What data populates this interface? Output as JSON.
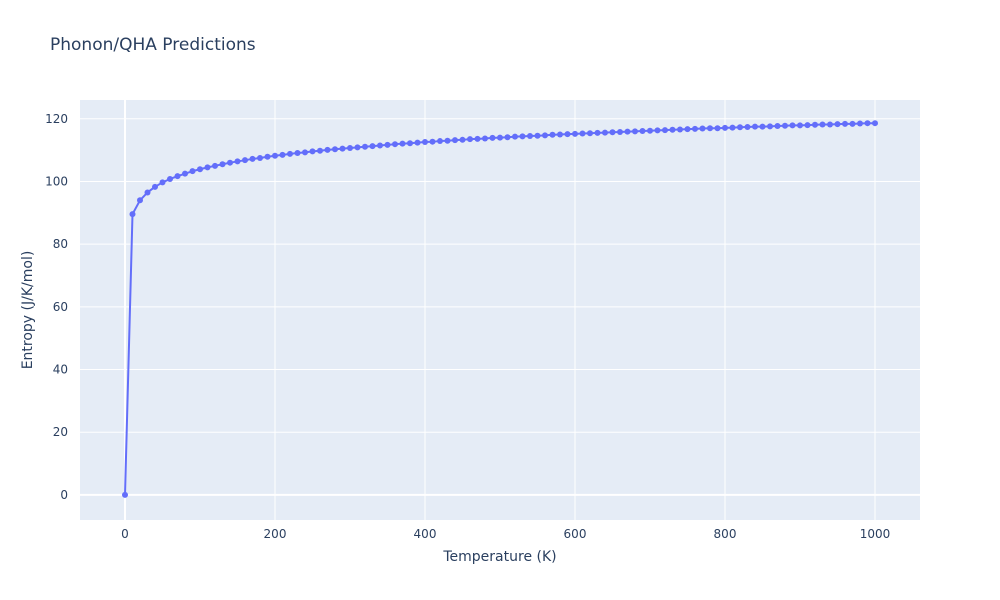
{
  "chart_data": {
    "type": "line",
    "title": "Phonon/QHA Predictions",
    "xlabel": "Temperature (K)",
    "ylabel": "Entropy (J/K/mol)",
    "xlim": [
      -60,
      1060
    ],
    "ylim": [
      -8,
      126
    ],
    "xticks": [
      0,
      200,
      400,
      600,
      800,
      1000
    ],
    "yticks": [
      0,
      20,
      40,
      60,
      80,
      100,
      120
    ],
    "grid": true,
    "legend": "none",
    "colors": {
      "plot_background": "#e5ecf6",
      "grid": "#ffffff",
      "line": "#636efa",
      "text": "#2a3f5f"
    },
    "series": [
      {
        "markers": true,
        "x": [
          0,
          10,
          20,
          30,
          40,
          50,
          60,
          70,
          80,
          90,
          100,
          110,
          120,
          130,
          140,
          150,
          160,
          170,
          180,
          190,
          200,
          210,
          220,
          230,
          240,
          250,
          260,
          270,
          280,
          290,
          300,
          310,
          320,
          330,
          340,
          350,
          360,
          370,
          380,
          390,
          400,
          410,
          420,
          430,
          440,
          450,
          460,
          470,
          480,
          490,
          500,
          510,
          520,
          530,
          540,
          550,
          560,
          570,
          580,
          590,
          600,
          610,
          620,
          630,
          640,
          650,
          660,
          670,
          680,
          690,
          700,
          710,
          720,
          730,
          740,
          750,
          760,
          770,
          780,
          790,
          800,
          810,
          820,
          830,
          840,
          850,
          860,
          870,
          880,
          890,
          900,
          910,
          920,
          930,
          940,
          950,
          960,
          970,
          980,
          990,
          1000
        ],
        "y": [
          0,
          89.6,
          94.0,
          96.5,
          98.3,
          99.7,
          100.8,
          101.7,
          102.5,
          103.3,
          103.9,
          104.5,
          105.0,
          105.5,
          106.0,
          106.4,
          106.8,
          107.2,
          107.5,
          107.9,
          108.2,
          108.5,
          108.8,
          109.1,
          109.3,
          109.6,
          109.8,
          110.1,
          110.3,
          110.5,
          110.7,
          110.9,
          111.1,
          111.3,
          111.5,
          111.7,
          111.9,
          112.1,
          112.2,
          112.4,
          112.6,
          112.7,
          112.9,
          113.0,
          113.2,
          113.3,
          113.5,
          113.6,
          113.7,
          113.9,
          114.0,
          114.1,
          114.3,
          114.4,
          114.5,
          114.6,
          114.7,
          114.9,
          115.0,
          115.1,
          115.2,
          115.3,
          115.4,
          115.5,
          115.6,
          115.7,
          115.8,
          115.9,
          116.0,
          116.1,
          116.2,
          116.3,
          116.4,
          116.5,
          116.6,
          116.7,
          116.8,
          116.9,
          117.0,
          117.0,
          117.1,
          117.2,
          117.3,
          117.4,
          117.5,
          117.5,
          117.6,
          117.7,
          117.8,
          117.9,
          117.9,
          118.0,
          118.1,
          118.2,
          118.2,
          118.3,
          118.4,
          118.4,
          118.5,
          118.6,
          118.6
        ]
      }
    ]
  }
}
